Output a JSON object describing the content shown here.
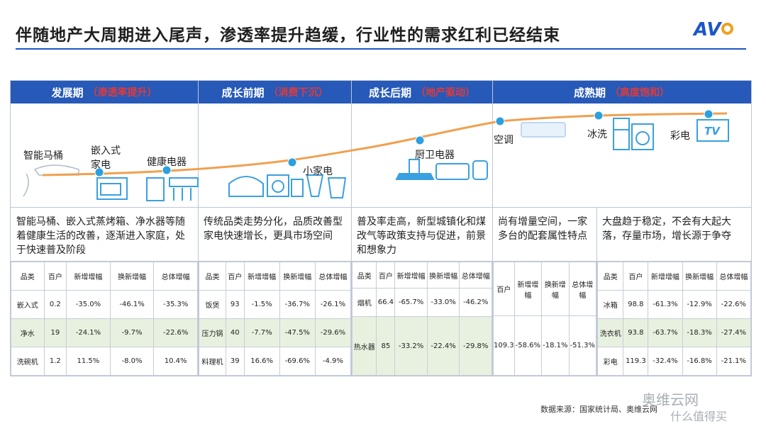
{
  "header": {
    "title": "伴随地产大周期进入尾声，渗透率提升趋缓，行业性的需求红利已经结束",
    "logo": "AVC"
  },
  "phases": [
    {
      "name": "发展期",
      "sub": "（渗透率提升）"
    },
    {
      "name": "成长前期",
      "sub": "（消费下沉）"
    },
    {
      "name": "成长后期",
      "sub": "（地产驱动）"
    },
    {
      "name": "成熟期",
      "sub": "（高度饱和）"
    }
  ],
  "curve_labels": {
    "toilet": "智能马桶",
    "embedded": "嵌入式\n家电",
    "health": "健康电器",
    "small": "小家电",
    "kitchen": "厨卫电器",
    "ac": "空调",
    "fridge_wash": "冰洗",
    "tv": "彩电"
  },
  "icon_names": [
    "toilet-icon",
    "oven-icon",
    "water-purifier-icon",
    "rice-cooker-icon",
    "blender-icon",
    "range-hood-icon",
    "air-conditioner-icon",
    "fridge-icon",
    "washer-icon",
    "tv-icon"
  ],
  "descriptions": [
    "智能马桶、嵌入式蒸烤箱、净水器等随着健康生活的改善，逐渐进入家庭，处于快速普及阶段",
    "传统品类走势分化，品质改善型家电快速增长，更具市场空间",
    "普及率走高，新型城镇化和煤改气等政策支持与促进，前景和想象力",
    "尚有增量空间，一家多台的配套属性特点",
    "大盘趋于稳定，不会有大起大落，存量市场，增长源于争夺"
  ],
  "tables": {
    "t1": {
      "headers": [
        "品类",
        "百户",
        "新增增幅",
        "换新增幅",
        "总体增幅"
      ],
      "rows": [
        [
          "嵌入式",
          "0.2",
          "-35.0%",
          "-46.1%",
          "-35.3%"
        ],
        [
          "净水",
          "19",
          "-24.1%",
          "-9.7%",
          "-22.6%"
        ],
        [
          "洗碗机",
          "1.2",
          "11.5%",
          "-8.0%",
          "10.4%"
        ]
      ]
    },
    "t2": {
      "headers": [
        "品类",
        "百户",
        "新增增幅",
        "换新增幅",
        "总体增幅"
      ],
      "rows": [
        [
          "饭煲",
          "93",
          "-1.5%",
          "-36.7%",
          "-26.1%"
        ],
        [
          "压力锅",
          "40",
          "-7.7%",
          "-47.5%",
          "-29.6%"
        ],
        [
          "料理机",
          "39",
          "16.6%",
          "-69.6%",
          "-4.9%"
        ]
      ]
    },
    "t3": {
      "headers": [
        "品类",
        "百户",
        "新增增幅",
        "换新增幅",
        "总体增幅"
      ],
      "rows": [
        [
          "烟机",
          "66.4",
          "-65.7%",
          "-33.0%",
          "-46.2%"
        ],
        [
          "热水器",
          "85",
          "-33.2%",
          "-22.4%",
          "-29.8%"
        ]
      ]
    },
    "t4": {
      "headers": [
        "百户",
        "新增增幅",
        "换新增幅",
        "总体增幅"
      ],
      "rows": [
        [
          "109.3",
          "-58.6%",
          "-18.1%",
          "-51.3%"
        ]
      ]
    },
    "t5": {
      "headers": [
        "品类",
        "百户",
        "新增增幅",
        "换新增幅",
        "总体增幅"
      ],
      "rows": [
        [
          "冰箱",
          "98.8",
          "-61.3%",
          "-12.9%",
          "-22.6%"
        ],
        [
          "洗衣机",
          "93.8",
          "-63.7%",
          "-18.3%",
          "-27.4%"
        ],
        [
          "彩电",
          "119.3",
          "-32.4%",
          "-16.8%",
          "-21.1%"
        ]
      ]
    }
  },
  "footer": {
    "source": "数据来源：国家统计局、奥维云网",
    "watermark": "奥维云网",
    "watermark2": "什么值得买"
  },
  "colors": {
    "accent_blue": "#2659b8",
    "curve_orange": "#f0a050",
    "dot_blue": "#2aa0e0",
    "red_text": "#e23a3a",
    "row_green": "#e8f1e0"
  }
}
